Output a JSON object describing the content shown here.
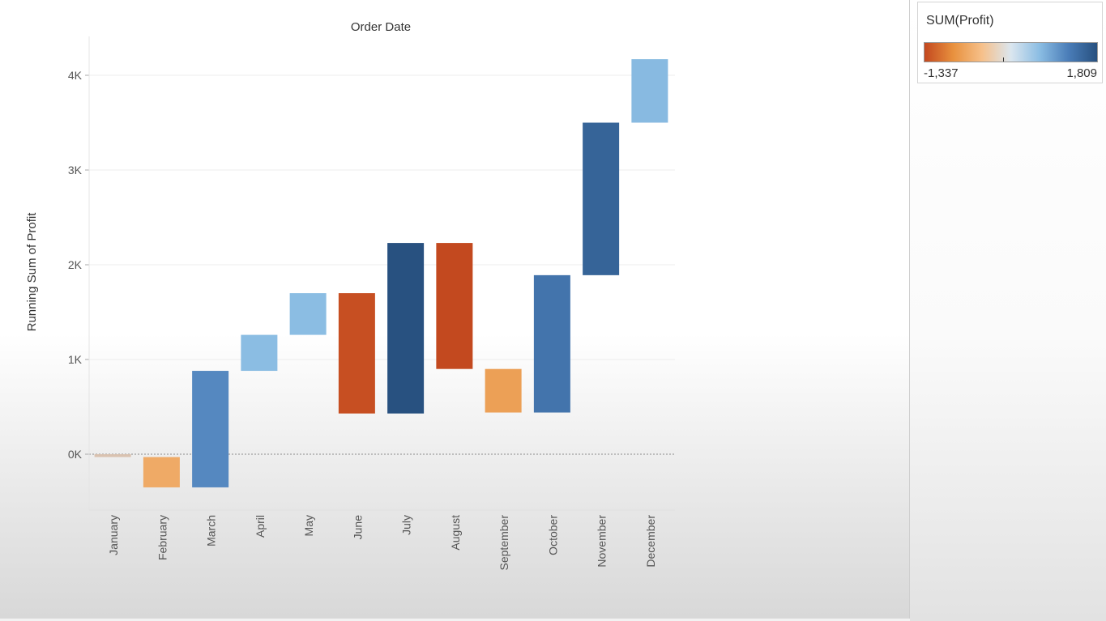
{
  "chart_data": {
    "type": "bar",
    "subtype": "waterfall (gantt bars of running sum)",
    "title": "Order Date",
    "xlabel": "",
    "ylabel": "Running Sum of Profit",
    "categories": [
      "January",
      "February",
      "March",
      "April",
      "May",
      "June",
      "July",
      "August",
      "September",
      "October",
      "November",
      "December"
    ],
    "bar_start": [
      0,
      -30,
      -350,
      880,
      1260,
      1700,
      430,
      2230,
      900,
      440,
      1890,
      3500
    ],
    "bar_end": [
      -30,
      -350,
      880,
      1260,
      1700,
      430,
      2230,
      900,
      440,
      1890,
      3500,
      4170
    ],
    "profit": [
      -30,
      -320,
      1230,
      380,
      440,
      -1270,
      1800,
      -1330,
      -460,
      1450,
      1610,
      670
    ],
    "yticks": [
      0,
      1000,
      2000,
      3000,
      4000
    ],
    "ytick_labels": [
      "0K",
      "1K",
      "2K",
      "3K",
      "4K"
    ],
    "ylim": [
      -600,
      4500
    ],
    "grid": true,
    "zero_line": "dashed",
    "color_by": "SUM(Profit)"
  },
  "legend": {
    "title": "SUM(Profit)",
    "min_label": "-1,337",
    "max_label": "1,809",
    "min": -1337,
    "max": 1809,
    "colors": {
      "neg_strong": "#c3481f",
      "neg_mid": "#e8913e",
      "neg_light": "#f6c08a",
      "center": "#dbe6ef",
      "pos_light": "#8bbde3",
      "pos_mid": "#4a7db8",
      "pos_strong": "#27507f"
    }
  }
}
